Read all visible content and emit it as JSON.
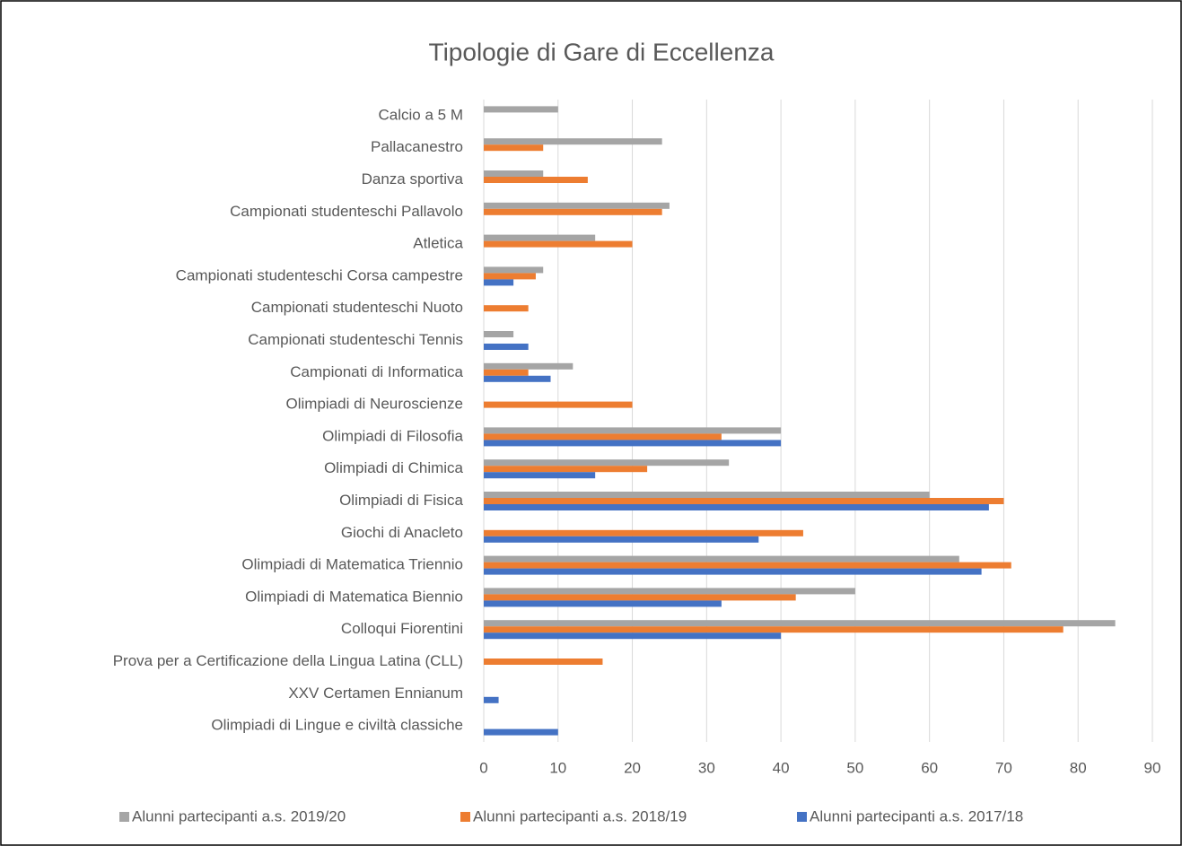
{
  "chart_data": {
    "type": "barh",
    "title": "Tipologie di Gare di Eccellenza",
    "categories": [
      "Calcio a 5 M",
      "Pallacanestro",
      "Danza sportiva",
      "Campionati studenteschi Pallavolo",
      "Atletica",
      "Campionati studenteschi Corsa campestre",
      "Campionati studenteschi Nuoto",
      "Campionati studenteschi Tennis",
      "Campionati di Informatica",
      "Olimpiadi di Neuroscienze",
      "Olimpiadi di Filosofia",
      "Olimpiadi di Chimica",
      "Olimpiadi di Fisica",
      "Giochi di Anacleto",
      "Olimpiadi di Matematica Triennio",
      "Olimpiadi di Matematica Biennio",
      "Colloqui Fiorentini",
      "Prova per a Certificazione della Lingua Latina (CLL)",
      "XXV Certamen Ennianum",
      "Olimpiadi di Lingue e civiltà classiche"
    ],
    "series": [
      {
        "name": "Alunni partecipanti a.s. 2019/20",
        "color": "#a5a5a5",
        "values": [
          10,
          24,
          8,
          25,
          15,
          8,
          null,
          4,
          12,
          null,
          40,
          33,
          60,
          null,
          64,
          50,
          85,
          null,
          null,
          null
        ]
      },
      {
        "name": "Alunni partecipanti a.s. 2018/19",
        "color": "#ed7d31",
        "values": [
          null,
          8,
          14,
          24,
          20,
          7,
          6,
          null,
          6,
          20,
          32,
          22,
          70,
          43,
          71,
          42,
          78,
          16,
          null,
          null
        ]
      },
      {
        "name": "Alunni partecipanti a.s. 2017/18",
        "color": "#4472c4",
        "values": [
          null,
          null,
          null,
          null,
          null,
          4,
          null,
          6,
          9,
          null,
          40,
          15,
          68,
          37,
          67,
          32,
          40,
          null,
          2,
          10
        ]
      }
    ],
    "xlim": [
      0,
      90
    ],
    "xticks": [
      0,
      10,
      20,
      30,
      40,
      50,
      60,
      70,
      80,
      90
    ],
    "grid": true
  }
}
